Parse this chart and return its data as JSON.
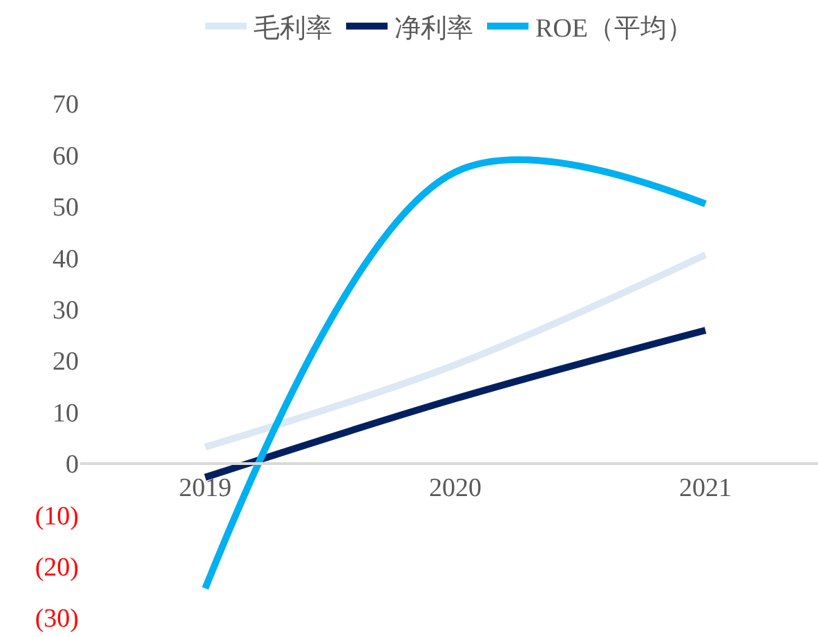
{
  "chart_data": {
    "type": "line",
    "categories": [
      "2019",
      "2020",
      "2021"
    ],
    "series": [
      {
        "name": "毛利率",
        "color": "#dde8f5",
        "values": [
          3.2,
          19.2,
          40.6
        ]
      },
      {
        "name": "净利率",
        "color": "#002060",
        "values": [
          -2.7,
          12.6,
          25.9
        ]
      },
      {
        "name": "ROE（平均）",
        "color": "#00b0f0",
        "values": [
          -24.3,
          56.7,
          50.5
        ]
      }
    ],
    "ylim": [
      -30,
      70
    ],
    "yticks": [
      {
        "value": -30,
        "label": "(30)"
      },
      {
        "value": -20,
        "label": "(20)"
      },
      {
        "value": -10,
        "label": "(10)"
      },
      0,
      10,
      20,
      30,
      40,
      50,
      60,
      70
    ],
    "legend": "top",
    "marker": "none",
    "line_style": "solid"
  }
}
